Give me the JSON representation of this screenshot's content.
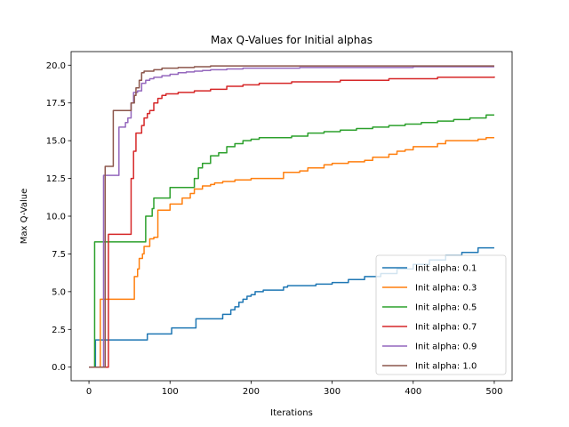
{
  "chart_data": {
    "type": "line",
    "title": "Max Q-Values for Initial alphas",
    "xlabel": "Iterations",
    "ylabel": "Max Q-Value",
    "xlim": [
      -22,
      522
    ],
    "ylim": [
      -0.9,
      20.9
    ],
    "x_ticks": [
      0,
      100,
      200,
      300,
      400,
      500
    ],
    "y_ticks": [
      0.0,
      2.5,
      5.0,
      7.5,
      10.0,
      12.5,
      15.0,
      17.5,
      20.0
    ],
    "x_tick_labels": [
      "0",
      "100",
      "200",
      "300",
      "400",
      "500"
    ],
    "y_tick_labels": [
      "0.0",
      "2.5",
      "5.0",
      "7.5",
      "10.0",
      "12.5",
      "15.0",
      "17.5",
      "20.0"
    ],
    "grid": false,
    "legend_position": "lower-right",
    "step_series": true,
    "series": [
      {
        "name": "Init alpha: 0.1",
        "color": "#1f77b4",
        "x": [
          0,
          7,
          8,
          70,
          72,
          100,
          102,
          130,
          132,
          160,
          165,
          175,
          180,
          185,
          190,
          195,
          200,
          205,
          210,
          215,
          220,
          240,
          245,
          280,
          300,
          320,
          340,
          360,
          380,
          400,
          420,
          440,
          460,
          480,
          500
        ],
        "y": [
          0.0,
          0.0,
          1.8,
          1.8,
          2.2,
          2.2,
          2.6,
          2.6,
          3.2,
          3.2,
          3.5,
          3.8,
          4.0,
          4.3,
          4.5,
          4.7,
          4.8,
          5.0,
          5.0,
          5.1,
          5.1,
          5.3,
          5.4,
          5.5,
          5.6,
          5.8,
          6.0,
          6.2,
          6.5,
          6.8,
          7.1,
          7.4,
          7.6,
          7.9,
          7.9
        ]
      },
      {
        "name": "Init alpha: 0.3",
        "color": "#ff7f0e",
        "x": [
          0,
          12,
          14,
          54,
          56,
          60,
          62,
          66,
          68,
          75,
          80,
          85,
          100,
          110,
          115,
          125,
          130,
          140,
          150,
          155,
          165,
          170,
          180,
          185,
          200,
          230,
          240,
          260,
          270,
          290,
          300,
          320,
          340,
          350,
          370,
          380,
          390,
          400,
          420,
          430,
          440,
          460,
          480,
          490,
          500
        ],
        "y": [
          0.0,
          0.0,
          4.5,
          4.5,
          6.0,
          6.5,
          7.2,
          7.5,
          8.0,
          8.5,
          8.6,
          10.4,
          10.8,
          10.8,
          11.2,
          11.5,
          11.8,
          12.0,
          12.1,
          12.2,
          12.3,
          12.3,
          12.4,
          12.4,
          12.5,
          12.5,
          12.9,
          13.0,
          13.2,
          13.4,
          13.5,
          13.6,
          13.7,
          13.9,
          14.1,
          14.3,
          14.4,
          14.6,
          14.6,
          14.8,
          15.0,
          15.0,
          15.1,
          15.2,
          15.2
        ]
      },
      {
        "name": "Init alpha: 0.5",
        "color": "#2ca02c",
        "x": [
          0,
          6,
          7,
          68,
          70,
          75,
          78,
          80,
          95,
          100,
          120,
          130,
          135,
          140,
          150,
          160,
          170,
          180,
          190,
          200,
          210,
          230,
          250,
          270,
          290,
          310,
          330,
          350,
          370,
          390,
          410,
          430,
          450,
          470,
          490,
          500
        ],
        "y": [
          0.0,
          0.0,
          8.3,
          8.3,
          10.0,
          10.0,
          10.5,
          11.2,
          11.2,
          11.9,
          11.9,
          12.5,
          13.2,
          13.5,
          14.0,
          14.2,
          14.6,
          14.8,
          15.0,
          15.1,
          15.2,
          15.2,
          15.3,
          15.5,
          15.6,
          15.7,
          15.8,
          15.9,
          16.0,
          16.1,
          16.2,
          16.3,
          16.4,
          16.5,
          16.7,
          16.7
        ]
      },
      {
        "name": "Init alpha: 0.7",
        "color": "#d62728",
        "x": [
          0,
          22,
          24,
          50,
          52,
          55,
          58,
          62,
          65,
          68,
          72,
          75,
          80,
          85,
          90,
          95,
          110,
          130,
          150,
          170,
          190,
          210,
          230,
          250,
          280,
          310,
          340,
          370,
          400,
          430,
          460,
          500
        ],
        "y": [
          0.0,
          0.0,
          8.8,
          8.8,
          12.5,
          14.3,
          15.5,
          15.5,
          16.0,
          16.5,
          16.8,
          17.0,
          17.5,
          17.8,
          18.0,
          18.1,
          18.2,
          18.3,
          18.4,
          18.6,
          18.7,
          18.8,
          18.8,
          18.9,
          18.9,
          19.0,
          19.0,
          19.1,
          19.1,
          19.2,
          19.2,
          19.25
        ]
      },
      {
        "name": "Init alpha: 0.9",
        "color": "#9467bd",
        "x": [
          0,
          16,
          18,
          35,
          37,
          45,
          48,
          52,
          55,
          60,
          65,
          70,
          75,
          80,
          90,
          100,
          110,
          120,
          130,
          140,
          150,
          170,
          190,
          220,
          260,
          300,
          400,
          500
        ],
        "y": [
          0.0,
          0.0,
          12.7,
          12.7,
          15.9,
          16.2,
          16.5,
          17.5,
          18.2,
          18.3,
          18.8,
          19.0,
          19.1,
          19.2,
          19.3,
          19.4,
          19.5,
          19.55,
          19.6,
          19.65,
          19.7,
          19.75,
          19.8,
          19.8,
          19.85,
          19.85,
          19.9,
          19.9
        ]
      },
      {
        "name": "Init alpha: 1.0",
        "color": "#8c564b",
        "x": [
          0,
          18,
          20,
          28,
          30,
          50,
          52,
          56,
          58,
          62,
          65,
          68,
          72,
          80,
          90,
          110,
          130,
          150,
          200,
          300,
          400,
          500
        ],
        "y": [
          0.0,
          0.0,
          13.3,
          13.3,
          17.0,
          17.0,
          17.5,
          18.0,
          18.5,
          19.0,
          19.5,
          19.6,
          19.6,
          19.7,
          19.8,
          19.85,
          19.9,
          19.95,
          19.95,
          19.95,
          19.95,
          19.95
        ]
      }
    ]
  }
}
